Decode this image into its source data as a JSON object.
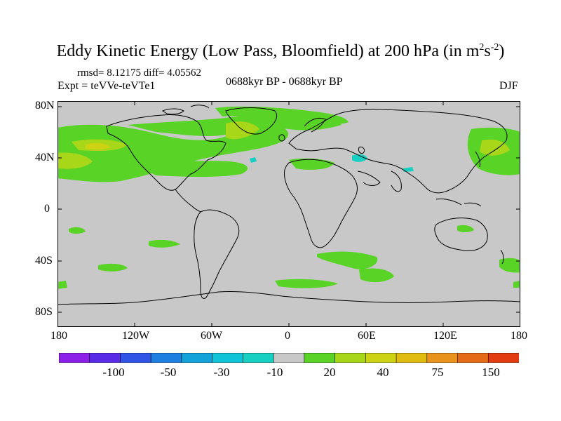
{
  "title": {
    "main": "Eddy Kinetic Energy (Low Pass, Bloomfield) at 200 hPa (in m",
    "sup1": "2",
    "mid": "s",
    "sup2": "-2",
    "end": ")"
  },
  "stats": "rmsd= 8.12175 diff= 4.05562",
  "expt": "Expt = teVVe-teVTe1",
  "period": "0688kyr BP - 0688kyr BP",
  "season": "DJF",
  "lat_labels": [
    "80N",
    "40N",
    "0",
    "40S",
    "80S"
  ],
  "lon_labels": [
    "180",
    "120W",
    "60W",
    "0",
    "60E",
    "120E",
    "180"
  ],
  "colorbar": {
    "colors": [
      "#8c1fe8",
      "#5a2be6",
      "#2f54e6",
      "#1f7fe0",
      "#13a3d8",
      "#10c3d6",
      "#17d0c2",
      "#c8c8c8",
      "#59d326",
      "#a7d718",
      "#cdd312",
      "#e0bc10",
      "#e8941c",
      "#e56a18",
      "#e23d12"
    ],
    "labels": [
      "-100",
      "-50",
      "-30",
      "-10",
      "20",
      "40",
      "75",
      "150"
    ]
  },
  "colors": {
    "background": "#c8c8c8",
    "green": "#59d326",
    "yellowgreen": "#a7d718",
    "cyan": "#17d0c2"
  }
}
